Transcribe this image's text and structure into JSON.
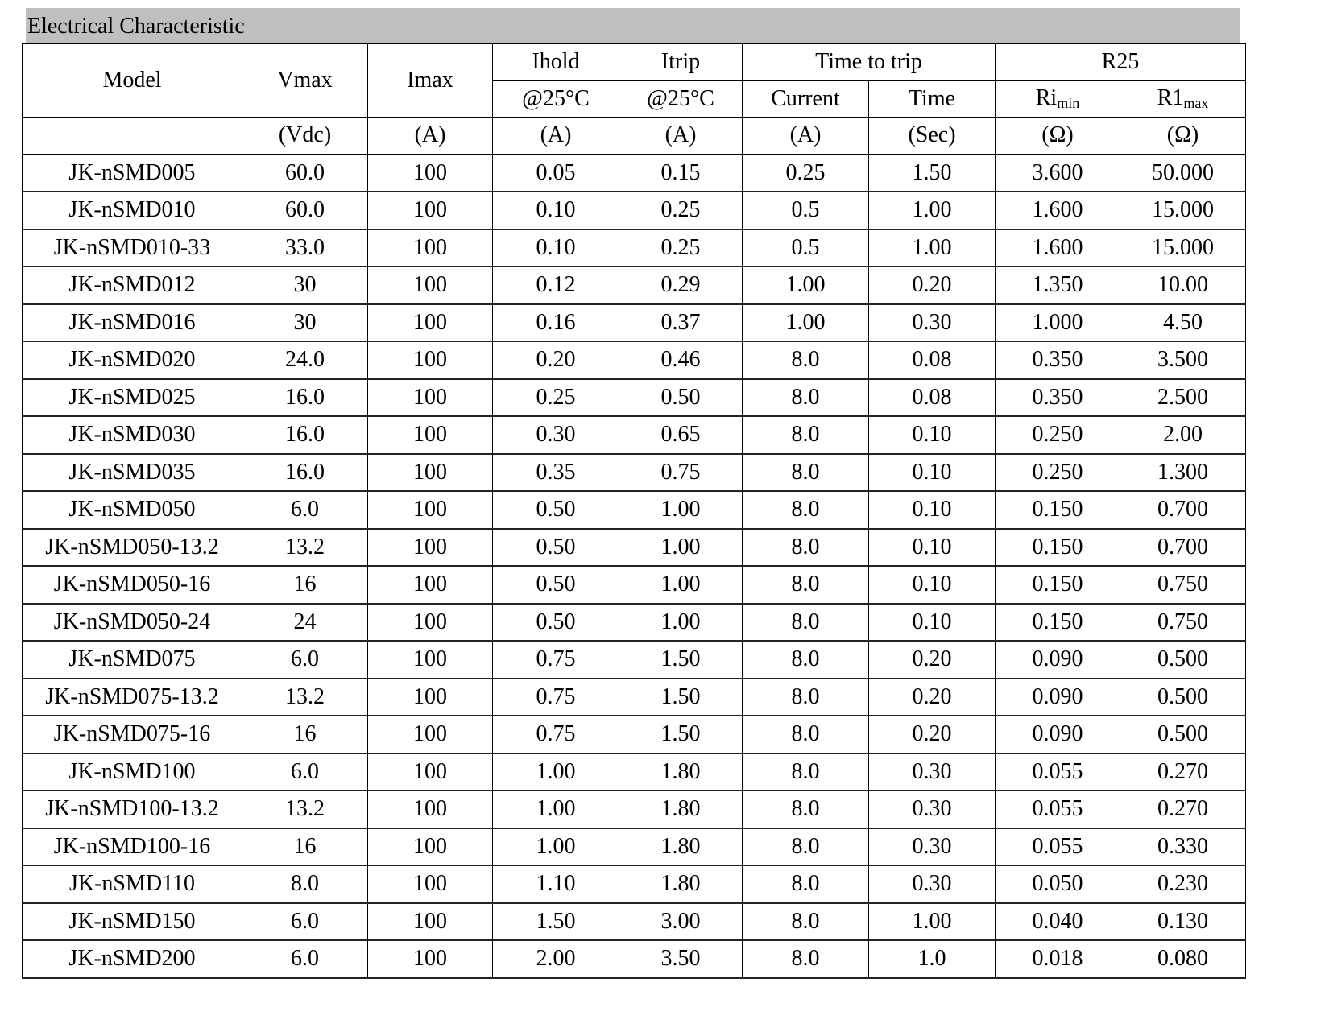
{
  "title": "Electrical Characteristic",
  "header": {
    "model": "Model",
    "vmax": "Vmax",
    "vmax_unit": "(Vdc)",
    "imax": "Imax",
    "imax_unit": "(A)",
    "ihold": "Ihold",
    "ihold_cond": "@25°C",
    "ihold_unit": "(A)",
    "itrip": "Itrip",
    "itrip_cond": "@25°C",
    "itrip_unit": "(A)",
    "time_to_trip": "Time to trip",
    "current": "Current",
    "current_unit": "(A)",
    "time": "Time",
    "time_unit": "(Sec)",
    "r25": "R25",
    "rimin": "Ri",
    "rimin_sub": "min",
    "rimin_unit": "(Ω)",
    "r1max": "R1",
    "r1max_sub": "max",
    "r1max_unit": "(Ω)"
  },
  "rows": [
    [
      "JK-nSMD005",
      "60.0",
      "100",
      "0.05",
      "0.15",
      "0.25",
      "1.50",
      "3.600",
      "50.000"
    ],
    [
      "JK-nSMD010",
      "60.0",
      "100",
      "0.10",
      "0.25",
      "0.5",
      "1.00",
      "1.600",
      "15.000"
    ],
    [
      "JK-nSMD010-33",
      "33.0",
      "100",
      "0.10",
      "0.25",
      "0.5",
      "1.00",
      "1.600",
      "15.000"
    ],
    [
      "JK-nSMD012",
      "30",
      "100",
      "0.12",
      "0.29",
      "1.00",
      "0.20",
      "1.350",
      "10.00"
    ],
    [
      "JK-nSMD016",
      "30",
      "100",
      "0.16",
      "0.37",
      "1.00",
      "0.30",
      "1.000",
      "4.50"
    ],
    [
      "JK-nSMD020",
      "24.0",
      "100",
      "0.20",
      "0.46",
      "8.0",
      "0.08",
      "0.350",
      "3.500"
    ],
    [
      "JK-nSMD025",
      "16.0",
      "100",
      "0.25",
      "0.50",
      "8.0",
      "0.08",
      "0.350",
      "2.500"
    ],
    [
      "JK-nSMD030",
      "16.0",
      "100",
      "0.30",
      "0.65",
      "8.0",
      "0.10",
      "0.250",
      "2.00"
    ],
    [
      "JK-nSMD035",
      "16.0",
      "100",
      "0.35",
      "0.75",
      "8.0",
      "0.10",
      "0.250",
      "1.300"
    ],
    [
      "JK-nSMD050",
      "6.0",
      "100",
      "0.50",
      "1.00",
      "8.0",
      "0.10",
      "0.150",
      "0.700"
    ],
    [
      "JK-nSMD050-13.2",
      "13.2",
      "100",
      "0.50",
      "1.00",
      "8.0",
      "0.10",
      "0.150",
      "0.700"
    ],
    [
      "JK-nSMD050-16",
      "16",
      "100",
      "0.50",
      "1.00",
      "8.0",
      "0.10",
      "0.150",
      "0.750"
    ],
    [
      "JK-nSMD050-24",
      "24",
      "100",
      "0.50",
      "1.00",
      "8.0",
      "0.10",
      "0.150",
      "0.750"
    ],
    [
      "JK-nSMD075",
      "6.0",
      "100",
      "0.75",
      "1.50",
      "8.0",
      "0.20",
      "0.090",
      "0.500"
    ],
    [
      "JK-nSMD075-13.2",
      "13.2",
      "100",
      "0.75",
      "1.50",
      "8.0",
      "0.20",
      "0.090",
      "0.500"
    ],
    [
      "JK-nSMD075-16",
      "16",
      "100",
      "0.75",
      "1.50",
      "8.0",
      "0.20",
      "0.090",
      "0.500"
    ],
    [
      "JK-nSMD100",
      "6.0",
      "100",
      "1.00",
      "1.80",
      "8.0",
      "0.30",
      "0.055",
      "0.270"
    ],
    [
      "JK-nSMD100-13.2",
      "13.2",
      "100",
      "1.00",
      "1.80",
      "8.0",
      "0.30",
      "0.055",
      "0.270"
    ],
    [
      "JK-nSMD100-16",
      "16",
      "100",
      "1.00",
      "1.80",
      "8.0",
      "0.30",
      "0.055",
      "0.330"
    ],
    [
      "JK-nSMD110",
      "8.0",
      "100",
      "1.10",
      "1.80",
      "8.0",
      "0.30",
      "0.050",
      "0.230"
    ],
    [
      "JK-nSMD150",
      "6.0",
      "100",
      "1.50",
      "3.00",
      "8.0",
      "1.00",
      "0.040",
      "0.130"
    ],
    [
      "JK-nSMD200",
      "6.0",
      "100",
      "2.00",
      "3.50",
      "8.0",
      "1.0",
      "0.018",
      "0.080"
    ]
  ]
}
